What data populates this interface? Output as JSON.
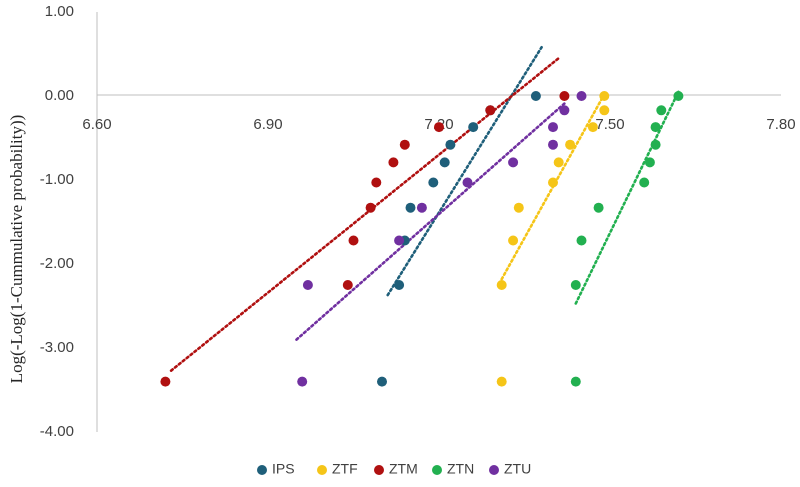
{
  "chart_data": {
    "type": "scatter",
    "title": "",
    "xlabel": "",
    "ylabel": "Log(-Log(1-Cummulative probability))",
    "xlim": [
      6.6,
      7.8
    ],
    "ylim": [
      -4.0,
      1.0
    ],
    "xticks": [
      "6.60",
      "6.90",
      "7.20",
      "7.50",
      "7.80"
    ],
    "yticks": [
      "1.00",
      "0.00",
      "-1.00",
      "-2.00",
      "-3.00",
      "-4.00"
    ],
    "grid": false,
    "legend": "bottom",
    "series": [
      {
        "name": "IPS",
        "color": "#1f5f7a",
        "points": [
          [
            7.1,
            -3.4
          ],
          [
            7.13,
            -2.25
          ],
          [
            7.14,
            -1.72
          ],
          [
            7.15,
            -1.33
          ],
          [
            7.19,
            -1.03
          ],
          [
            7.21,
            -0.79
          ],
          [
            7.22,
            -0.58
          ],
          [
            7.26,
            -0.37
          ],
          [
            7.29,
            -0.17
          ],
          [
            7.37,
            0.0
          ]
        ],
        "trend": [
          [
            7.11,
            -2.37
          ],
          [
            7.38,
            0.58
          ]
        ]
      },
      {
        "name": "ZTF",
        "color": "#f5c518",
        "points": [
          [
            7.31,
            -3.4
          ],
          [
            7.31,
            -2.25
          ],
          [
            7.33,
            -1.72
          ],
          [
            7.34,
            -1.33
          ],
          [
            7.4,
            -1.03
          ],
          [
            7.41,
            -0.79
          ],
          [
            7.43,
            -0.58
          ],
          [
            7.47,
            -0.37
          ],
          [
            7.49,
            -0.17
          ],
          [
            7.49,
            0.0
          ]
        ],
        "trend": [
          [
            7.31,
            -2.18
          ],
          [
            7.49,
            0.02
          ]
        ]
      },
      {
        "name": "ZTM",
        "color": "#b01010",
        "points": [
          [
            6.72,
            -3.4
          ],
          [
            7.04,
            -2.25
          ],
          [
            7.05,
            -1.72
          ],
          [
            7.08,
            -1.33
          ],
          [
            7.09,
            -1.03
          ],
          [
            7.12,
            -0.79
          ],
          [
            7.14,
            -0.58
          ],
          [
            7.2,
            -0.37
          ],
          [
            7.29,
            -0.17
          ],
          [
            7.42,
            0.0
          ]
        ],
        "trend": [
          [
            6.73,
            -3.27
          ],
          [
            7.41,
            0.45
          ]
        ]
      },
      {
        "name": "ZTN",
        "color": "#22b050",
        "points": [
          [
            7.44,
            -3.4
          ],
          [
            7.44,
            -2.25
          ],
          [
            7.45,
            -1.72
          ],
          [
            7.48,
            -1.33
          ],
          [
            7.56,
            -1.03
          ],
          [
            7.57,
            -0.79
          ],
          [
            7.58,
            -0.58
          ],
          [
            7.58,
            -0.37
          ],
          [
            7.59,
            -0.17
          ],
          [
            7.62,
            0.0
          ]
        ],
        "trend": [
          [
            7.44,
            -2.47
          ],
          [
            7.62,
            0.05
          ]
        ]
      },
      {
        "name": "ZTU",
        "color": "#7030a0",
        "points": [
          [
            6.96,
            -3.4
          ],
          [
            6.97,
            -2.25
          ],
          [
            7.13,
            -1.72
          ],
          [
            7.17,
            -1.33
          ],
          [
            7.25,
            -1.03
          ],
          [
            7.33,
            -0.79
          ],
          [
            7.4,
            -0.58
          ],
          [
            7.4,
            -0.37
          ],
          [
            7.42,
            -0.17
          ],
          [
            7.45,
            0.0
          ]
        ],
        "trend": [
          [
            6.95,
            -2.9
          ],
          [
            7.42,
            -0.09
          ]
        ]
      }
    ]
  }
}
